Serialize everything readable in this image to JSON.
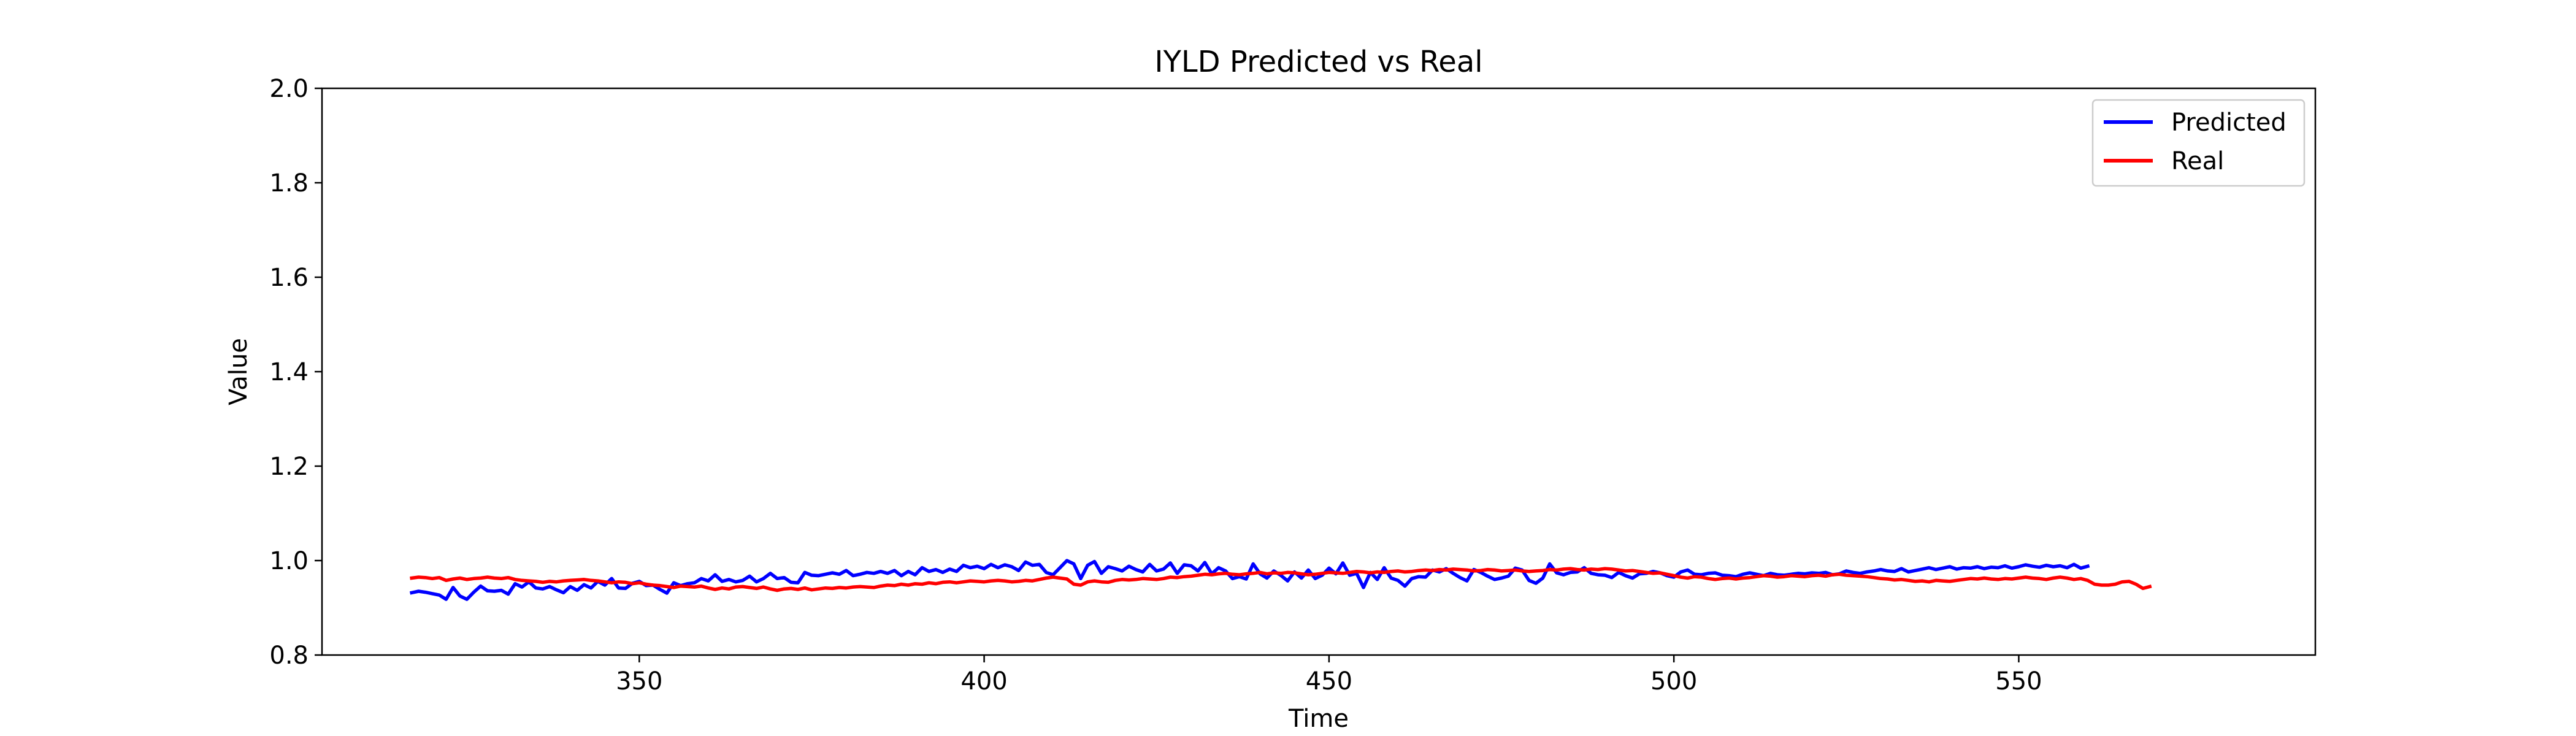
{
  "chart_data": {
    "type": "line",
    "title": "IYLD Predicted vs Real",
    "xlabel": "Time",
    "ylabel": "Value",
    "xlim": [
      304,
      593
    ],
    "ylim": [
      0.8,
      2.0
    ],
    "xticks": [
      350,
      400,
      450,
      500,
      550
    ],
    "yticks": [
      0.8,
      1.0,
      1.2,
      1.4,
      1.6,
      1.8,
      2.0
    ],
    "xtick_labels": [
      "350",
      "400",
      "450",
      "500",
      "550"
    ],
    "ytick_labels": [
      "0.8",
      "1.0",
      "1.2",
      "1.4",
      "1.6",
      "1.8",
      "2.0"
    ],
    "grid": false,
    "legend_position": "top-right",
    "x_start": 317,
    "series": [
      {
        "name": "Predicted",
        "color": "#0000ff",
        "values": [
          0.932,
          0.935,
          0.933,
          0.93,
          0.927,
          0.918,
          0.943,
          0.925,
          0.918,
          0.933,
          0.946,
          0.936,
          0.935,
          0.937,
          0.929,
          0.951,
          0.944,
          0.955,
          0.942,
          0.94,
          0.945,
          0.938,
          0.932,
          0.945,
          0.937,
          0.949,
          0.942,
          0.956,
          0.948,
          0.962,
          0.942,
          0.941,
          0.952,
          0.956,
          0.947,
          0.948,
          0.939,
          0.931,
          0.953,
          0.947,
          0.951,
          0.953,
          0.962,
          0.957,
          0.97,
          0.956,
          0.96,
          0.955,
          0.958,
          0.967,
          0.955,
          0.962,
          0.973,
          0.962,
          0.964,
          0.954,
          0.953,
          0.975,
          0.969,
          0.968,
          0.971,
          0.974,
          0.971,
          0.979,
          0.968,
          0.971,
          0.975,
          0.973,
          0.977,
          0.973,
          0.979,
          0.968,
          0.977,
          0.97,
          0.985,
          0.977,
          0.981,
          0.975,
          0.982,
          0.977,
          0.99,
          0.985,
          0.988,
          0.983,
          0.992,
          0.985,
          0.991,
          0.987,
          0.979,
          0.997,
          0.99,
          0.992,
          0.975,
          0.97,
          0.985,
          1.0,
          0.993,
          0.962,
          0.99,
          0.998,
          0.973,
          0.987,
          0.983,
          0.978,
          0.988,
          0.981,
          0.976,
          0.992,
          0.978,
          0.982,
          0.995,
          0.973,
          0.991,
          0.989,
          0.978,
          0.996,
          0.972,
          0.985,
          0.978,
          0.962,
          0.966,
          0.961,
          0.993,
          0.972,
          0.963,
          0.978,
          0.969,
          0.957,
          0.976,
          0.963,
          0.98,
          0.962,
          0.969,
          0.984,
          0.972,
          0.995,
          0.969,
          0.973,
          0.943,
          0.975,
          0.96,
          0.985,
          0.963,
          0.958,
          0.946,
          0.962,
          0.966,
          0.965,
          0.98,
          0.976,
          0.983,
          0.973,
          0.964,
          0.957,
          0.981,
          0.975,
          0.967,
          0.96,
          0.963,
          0.967,
          0.984,
          0.98,
          0.958,
          0.952,
          0.963,
          0.993,
          0.974,
          0.97,
          0.975,
          0.976,
          0.985,
          0.973,
          0.97,
          0.969,
          0.964,
          0.975,
          0.968,
          0.963,
          0.972,
          0.973,
          0.977,
          0.974,
          0.968,
          0.965,
          0.976,
          0.98,
          0.971,
          0.97,
          0.973,
          0.974,
          0.969,
          0.968,
          0.966,
          0.971,
          0.974,
          0.971,
          0.968,
          0.973,
          0.97,
          0.969,
          0.971,
          0.973,
          0.972,
          0.974,
          0.973,
          0.975,
          0.97,
          0.972,
          0.978,
          0.975,
          0.973,
          0.976,
          0.978,
          0.981,
          0.978,
          0.977,
          0.983,
          0.976,
          0.979,
          0.982,
          0.985,
          0.981,
          0.984,
          0.987,
          0.982,
          0.985,
          0.984,
          0.987,
          0.983,
          0.986,
          0.985,
          0.989,
          0.984,
          0.987,
          0.991,
          0.988,
          0.986,
          0.99,
          0.987,
          0.989,
          0.985,
          0.992,
          0.984,
          0.988
        ]
      },
      {
        "name": "Real",
        "color": "#ff0000",
        "values": [
          0.963,
          0.965,
          0.964,
          0.962,
          0.964,
          0.958,
          0.961,
          0.963,
          0.96,
          0.962,
          0.963,
          0.965,
          0.963,
          0.962,
          0.964,
          0.96,
          0.958,
          0.957,
          0.956,
          0.954,
          0.956,
          0.955,
          0.957,
          0.958,
          0.959,
          0.96,
          0.958,
          0.957,
          0.955,
          0.953,
          0.955,
          0.954,
          0.951,
          0.953,
          0.95,
          0.948,
          0.947,
          0.945,
          0.943,
          0.946,
          0.945,
          0.944,
          0.946,
          0.942,
          0.939,
          0.942,
          0.94,
          0.944,
          0.945,
          0.943,
          0.941,
          0.944,
          0.94,
          0.937,
          0.94,
          0.941,
          0.939,
          0.942,
          0.938,
          0.94,
          0.942,
          0.941,
          0.943,
          0.942,
          0.944,
          0.945,
          0.944,
          0.943,
          0.946,
          0.948,
          0.947,
          0.95,
          0.948,
          0.951,
          0.95,
          0.953,
          0.951,
          0.954,
          0.955,
          0.953,
          0.955,
          0.957,
          0.956,
          0.955,
          0.957,
          0.958,
          0.957,
          0.955,
          0.956,
          0.958,
          0.957,
          0.96,
          0.963,
          0.965,
          0.963,
          0.961,
          0.95,
          0.948,
          0.955,
          0.957,
          0.955,
          0.954,
          0.958,
          0.96,
          0.959,
          0.96,
          0.962,
          0.961,
          0.96,
          0.962,
          0.965,
          0.964,
          0.966,
          0.967,
          0.969,
          0.971,
          0.97,
          0.972,
          0.973,
          0.971,
          0.97,
          0.972,
          0.973,
          0.975,
          0.972,
          0.974,
          0.973,
          0.975,
          0.974,
          0.972,
          0.97,
          0.971,
          0.973,
          0.975,
          0.974,
          0.973,
          0.975,
          0.977,
          0.976,
          0.974,
          0.976,
          0.975,
          0.977,
          0.978,
          0.976,
          0.977,
          0.979,
          0.98,
          0.979,
          0.981,
          0.98,
          0.982,
          0.981,
          0.98,
          0.978,
          0.979,
          0.981,
          0.98,
          0.978,
          0.979,
          0.98,
          0.978,
          0.977,
          0.978,
          0.979,
          0.981,
          0.98,
          0.982,
          0.983,
          0.981,
          0.98,
          0.982,
          0.981,
          0.983,
          0.982,
          0.98,
          0.978,
          0.979,
          0.977,
          0.975,
          0.973,
          0.974,
          0.971,
          0.968,
          0.965,
          0.963,
          0.966,
          0.965,
          0.962,
          0.96,
          0.962,
          0.963,
          0.961,
          0.963,
          0.964,
          0.966,
          0.968,
          0.967,
          0.965,
          0.966,
          0.968,
          0.967,
          0.966,
          0.968,
          0.969,
          0.967,
          0.97,
          0.971,
          0.969,
          0.968,
          0.967,
          0.966,
          0.964,
          0.962,
          0.961,
          0.959,
          0.96,
          0.958,
          0.956,
          0.957,
          0.955,
          0.958,
          0.957,
          0.956,
          0.958,
          0.96,
          0.962,
          0.961,
          0.963,
          0.961,
          0.96,
          0.962,
          0.961,
          0.963,
          0.965,
          0.963,
          0.962,
          0.96,
          0.963,
          0.965,
          0.963,
          0.96,
          0.962,
          0.958,
          0.95,
          0.948,
          0.948,
          0.95,
          0.955,
          0.956,
          0.95,
          0.941,
          0.945
        ]
      }
    ]
  }
}
